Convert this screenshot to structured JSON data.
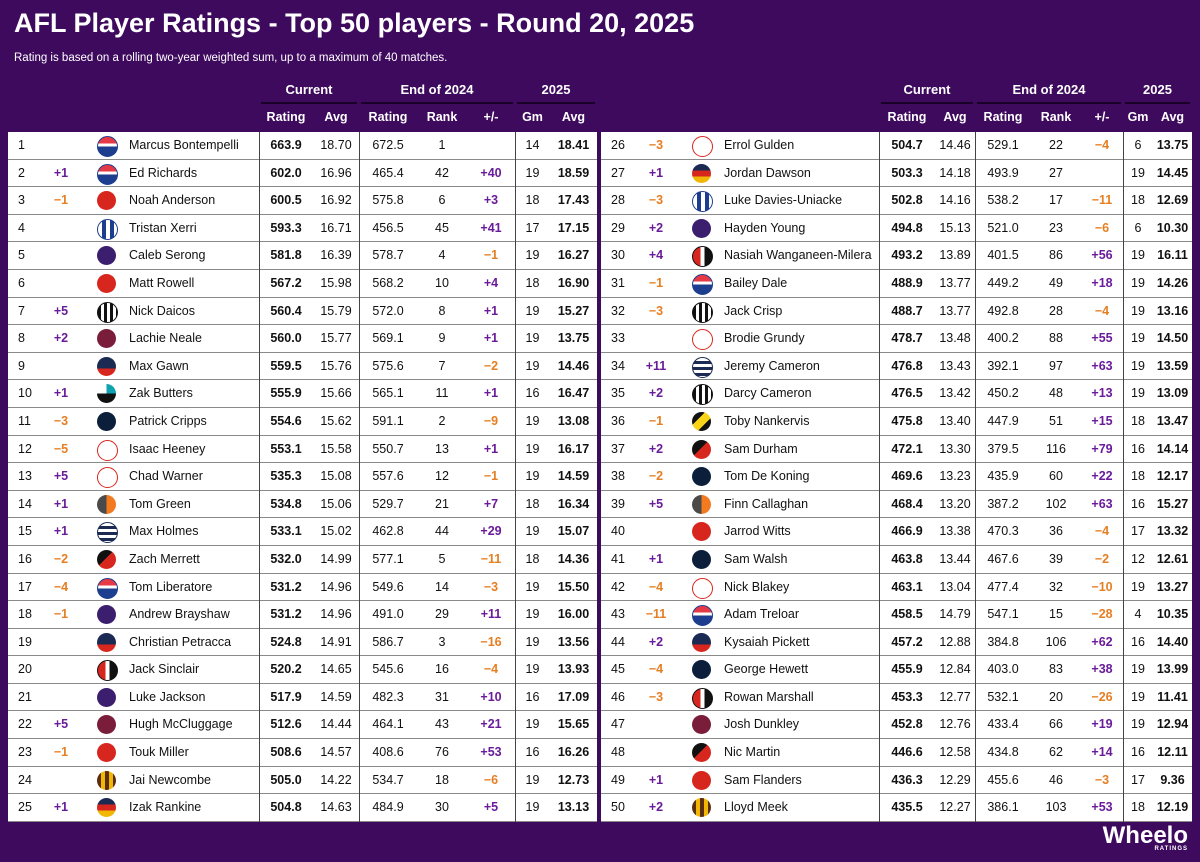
{
  "title": "AFL Player Ratings - Top 50 players - Round 20, 2025",
  "subtitle": "Rating is based on a rolling two-year weighted sum, up to a maximum of 40 matches.",
  "group_headers": {
    "current": "Current",
    "end2024": "End of 2024",
    "y2025": "2025"
  },
  "column_headers": {
    "rating": "Rating",
    "avg": "Avg",
    "rank": "Rank",
    "diff": "+/-",
    "gm": "Gm"
  },
  "brand": {
    "name": "Wheelo",
    "tag": "RATINGS"
  },
  "colors": {
    "background": "#3e0a5e",
    "positive": "#6a1b9a",
    "negative": "#e67e22"
  },
  "players": [
    {
      "rank": "1",
      "chg": "",
      "name": "Marcus Bontempelli",
      "team": "WB",
      "rating": "663.9",
      "avg": "18.70",
      "r24": "672.5",
      "rank24": "1",
      "diff": "",
      "gm": "14",
      "avg25": "18.41"
    },
    {
      "rank": "2",
      "chg": "+1",
      "name": "Ed Richards",
      "team": "WB",
      "rating": "602.0",
      "avg": "16.96",
      "r24": "465.4",
      "rank24": "42",
      "diff": "+40",
      "gm": "19",
      "avg25": "18.59"
    },
    {
      "rank": "3",
      "chg": "−1",
      "name": "Noah Anderson",
      "team": "GC",
      "rating": "600.5",
      "avg": "16.92",
      "r24": "575.8",
      "rank24": "6",
      "diff": "+3",
      "gm": "18",
      "avg25": "17.43"
    },
    {
      "rank": "4",
      "chg": "",
      "name": "Tristan Xerri",
      "team": "NM",
      "rating": "593.3",
      "avg": "16.71",
      "r24": "456.5",
      "rank24": "45",
      "diff": "+41",
      "gm": "17",
      "avg25": "17.15"
    },
    {
      "rank": "5",
      "chg": "",
      "name": "Caleb Serong",
      "team": "FR",
      "rating": "581.8",
      "avg": "16.39",
      "r24": "578.7",
      "rank24": "4",
      "diff": "−1",
      "gm": "19",
      "avg25": "16.27"
    },
    {
      "rank": "6",
      "chg": "",
      "name": "Matt Rowell",
      "team": "GC",
      "rating": "567.2",
      "avg": "15.98",
      "r24": "568.2",
      "rank24": "10",
      "diff": "+4",
      "gm": "18",
      "avg25": "16.90"
    },
    {
      "rank": "7",
      "chg": "+5",
      "name": "Nick Daicos",
      "team": "COL",
      "rating": "560.4",
      "avg": "15.79",
      "r24": "572.0",
      "rank24": "8",
      "diff": "+1",
      "gm": "19",
      "avg25": "15.27"
    },
    {
      "rank": "8",
      "chg": "+2",
      "name": "Lachie Neale",
      "team": "BL",
      "rating": "560.0",
      "avg": "15.77",
      "r24": "569.1",
      "rank24": "9",
      "diff": "+1",
      "gm": "19",
      "avg25": "13.75"
    },
    {
      "rank": "9",
      "chg": "",
      "name": "Max Gawn",
      "team": "MEL",
      "rating": "559.5",
      "avg": "15.76",
      "r24": "575.6",
      "rank24": "7",
      "diff": "−2",
      "gm": "19",
      "avg25": "14.46"
    },
    {
      "rank": "10",
      "chg": "+1",
      "name": "Zak Butters",
      "team": "PA",
      "rating": "555.9",
      "avg": "15.66",
      "r24": "565.1",
      "rank24": "11",
      "diff": "+1",
      "gm": "16",
      "avg25": "16.47"
    },
    {
      "rank": "11",
      "chg": "−3",
      "name": "Patrick Cripps",
      "team": "CAR",
      "rating": "554.6",
      "avg": "15.62",
      "r24": "591.1",
      "rank24": "2",
      "diff": "−9",
      "gm": "19",
      "avg25": "13.08"
    },
    {
      "rank": "12",
      "chg": "−5",
      "name": "Isaac Heeney",
      "team": "SYD",
      "rating": "553.1",
      "avg": "15.58",
      "r24": "550.7",
      "rank24": "13",
      "diff": "+1",
      "gm": "19",
      "avg25": "16.17"
    },
    {
      "rank": "13",
      "chg": "+5",
      "name": "Chad Warner",
      "team": "SYD",
      "rating": "535.3",
      "avg": "15.08",
      "r24": "557.6",
      "rank24": "12",
      "diff": "−1",
      "gm": "19",
      "avg25": "14.59"
    },
    {
      "rank": "14",
      "chg": "+1",
      "name": "Tom Green",
      "team": "GWS",
      "rating": "534.8",
      "avg": "15.06",
      "r24": "529.7",
      "rank24": "21",
      "diff": "+7",
      "gm": "18",
      "avg25": "16.34"
    },
    {
      "rank": "15",
      "chg": "+1",
      "name": "Max Holmes",
      "team": "GEE",
      "rating": "533.1",
      "avg": "15.02",
      "r24": "462.8",
      "rank24": "44",
      "diff": "+29",
      "gm": "19",
      "avg25": "15.07"
    },
    {
      "rank": "16",
      "chg": "−2",
      "name": "Zach Merrett",
      "team": "ESS",
      "rating": "532.0",
      "avg": "14.99",
      "r24": "577.1",
      "rank24": "5",
      "diff": "−11",
      "gm": "18",
      "avg25": "14.36"
    },
    {
      "rank": "17",
      "chg": "−4",
      "name": "Tom Liberatore",
      "team": "WB",
      "rating": "531.2",
      "avg": "14.96",
      "r24": "549.6",
      "rank24": "14",
      "diff": "−3",
      "gm": "19",
      "avg25": "15.50"
    },
    {
      "rank": "18",
      "chg": "−1",
      "name": "Andrew Brayshaw",
      "team": "FR",
      "rating": "531.2",
      "avg": "14.96",
      "r24": "491.0",
      "rank24": "29",
      "diff": "+11",
      "gm": "19",
      "avg25": "16.00"
    },
    {
      "rank": "19",
      "chg": "",
      "name": "Christian Petracca",
      "team": "MEL",
      "rating": "524.8",
      "avg": "14.91",
      "r24": "586.7",
      "rank24": "3",
      "diff": "−16",
      "gm": "19",
      "avg25": "13.56"
    },
    {
      "rank": "20",
      "chg": "",
      "name": "Jack Sinclair",
      "team": "STK",
      "rating": "520.2",
      "avg": "14.65",
      "r24": "545.6",
      "rank24": "16",
      "diff": "−4",
      "gm": "19",
      "avg25": "13.93"
    },
    {
      "rank": "21",
      "chg": "",
      "name": "Luke Jackson",
      "team": "FR",
      "rating": "517.9",
      "avg": "14.59",
      "r24": "482.3",
      "rank24": "31",
      "diff": "+10",
      "gm": "16",
      "avg25": "17.09"
    },
    {
      "rank": "22",
      "chg": "+5",
      "name": "Hugh McCluggage",
      "team": "BL",
      "rating": "512.6",
      "avg": "14.44",
      "r24": "464.1",
      "rank24": "43",
      "diff": "+21",
      "gm": "19",
      "avg25": "15.65"
    },
    {
      "rank": "23",
      "chg": "−1",
      "name": "Touk Miller",
      "team": "GC",
      "rating": "508.6",
      "avg": "14.57",
      "r24": "408.6",
      "rank24": "76",
      "diff": "+53",
      "gm": "16",
      "avg25": "16.26"
    },
    {
      "rank": "24",
      "chg": "",
      "name": "Jai Newcombe",
      "team": "HAW",
      "rating": "505.0",
      "avg": "14.22",
      "r24": "534.7",
      "rank24": "18",
      "diff": "−6",
      "gm": "19",
      "avg25": "12.73"
    },
    {
      "rank": "25",
      "chg": "+1",
      "name": "Izak Rankine",
      "team": "ADE",
      "rating": "504.8",
      "avg": "14.63",
      "r24": "484.9",
      "rank24": "30",
      "diff": "+5",
      "gm": "19",
      "avg25": "13.13"
    },
    {
      "rank": "26",
      "chg": "−3",
      "name": "Errol Gulden",
      "team": "SYD",
      "rating": "504.7",
      "avg": "14.46",
      "r24": "529.1",
      "rank24": "22",
      "diff": "−4",
      "gm": "6",
      "avg25": "13.75"
    },
    {
      "rank": "27",
      "chg": "+1",
      "name": "Jordan Dawson",
      "team": "ADE",
      "rating": "503.3",
      "avg": "14.18",
      "r24": "493.9",
      "rank24": "27",
      "diff": "",
      "gm": "19",
      "avg25": "14.45"
    },
    {
      "rank": "28",
      "chg": "−3",
      "name": "Luke Davies-Uniacke",
      "team": "NM",
      "rating": "502.8",
      "avg": "14.16",
      "r24": "538.2",
      "rank24": "17",
      "diff": "−11",
      "gm": "18",
      "avg25": "12.69"
    },
    {
      "rank": "29",
      "chg": "+2",
      "name": "Hayden Young",
      "team": "FR",
      "rating": "494.8",
      "avg": "15.13",
      "r24": "521.0",
      "rank24": "23",
      "diff": "−6",
      "gm": "6",
      "avg25": "10.30"
    },
    {
      "rank": "30",
      "chg": "+4",
      "name": "Nasiah Wanganeen-Milera",
      "team": "STK",
      "rating": "493.2",
      "avg": "13.89",
      "r24": "401.5",
      "rank24": "86",
      "diff": "+56",
      "gm": "19",
      "avg25": "16.11"
    },
    {
      "rank": "31",
      "chg": "−1",
      "name": "Bailey Dale",
      "team": "WB",
      "rating": "488.9",
      "avg": "13.77",
      "r24": "449.2",
      "rank24": "49",
      "diff": "+18",
      "gm": "19",
      "avg25": "14.26"
    },
    {
      "rank": "32",
      "chg": "−3",
      "name": "Jack Crisp",
      "team": "COL",
      "rating": "488.7",
      "avg": "13.77",
      "r24": "492.8",
      "rank24": "28",
      "diff": "−4",
      "gm": "19",
      "avg25": "13.16"
    },
    {
      "rank": "33",
      "chg": "",
      "name": "Brodie Grundy",
      "team": "SYD",
      "rating": "478.7",
      "avg": "13.48",
      "r24": "400.2",
      "rank24": "88",
      "diff": "+55",
      "gm": "19",
      "avg25": "14.50"
    },
    {
      "rank": "34",
      "chg": "+11",
      "name": "Jeremy Cameron",
      "team": "GEE",
      "rating": "476.8",
      "avg": "13.43",
      "r24": "392.1",
      "rank24": "97",
      "diff": "+63",
      "gm": "19",
      "avg25": "13.59"
    },
    {
      "rank": "35",
      "chg": "+2",
      "name": "Darcy Cameron",
      "team": "COL",
      "rating": "476.5",
      "avg": "13.42",
      "r24": "450.2",
      "rank24": "48",
      "diff": "+13",
      "gm": "19",
      "avg25": "13.09"
    },
    {
      "rank": "36",
      "chg": "−1",
      "name": "Toby Nankervis",
      "team": "RIC",
      "rating": "475.8",
      "avg": "13.40",
      "r24": "447.9",
      "rank24": "51",
      "diff": "+15",
      "gm": "18",
      "avg25": "13.47"
    },
    {
      "rank": "37",
      "chg": "+2",
      "name": "Sam Durham",
      "team": "ESS",
      "rating": "472.1",
      "avg": "13.30",
      "r24": "379.5",
      "rank24": "116",
      "diff": "+79",
      "gm": "16",
      "avg25": "14.14"
    },
    {
      "rank": "38",
      "chg": "−2",
      "name": "Tom De Koning",
      "team": "CAR",
      "rating": "469.6",
      "avg": "13.23",
      "r24": "435.9",
      "rank24": "60",
      "diff": "+22",
      "gm": "18",
      "avg25": "12.17"
    },
    {
      "rank": "39",
      "chg": "+5",
      "name": "Finn Callaghan",
      "team": "GWS",
      "rating": "468.4",
      "avg": "13.20",
      "r24": "387.2",
      "rank24": "102",
      "diff": "+63",
      "gm": "16",
      "avg25": "15.27"
    },
    {
      "rank": "40",
      "chg": "",
      "name": "Jarrod Witts",
      "team": "GC",
      "rating": "466.9",
      "avg": "13.38",
      "r24": "470.3",
      "rank24": "36",
      "diff": "−4",
      "gm": "17",
      "avg25": "13.32"
    },
    {
      "rank": "41",
      "chg": "+1",
      "name": "Sam Walsh",
      "team": "CAR",
      "rating": "463.8",
      "avg": "13.44",
      "r24": "467.6",
      "rank24": "39",
      "diff": "−2",
      "gm": "12",
      "avg25": "12.61"
    },
    {
      "rank": "42",
      "chg": "−4",
      "name": "Nick Blakey",
      "team": "SYD",
      "rating": "463.1",
      "avg": "13.04",
      "r24": "477.4",
      "rank24": "32",
      "diff": "−10",
      "gm": "19",
      "avg25": "13.27"
    },
    {
      "rank": "43",
      "chg": "−11",
      "name": "Adam Treloar",
      "team": "WB",
      "rating": "458.5",
      "avg": "14.79",
      "r24": "547.1",
      "rank24": "15",
      "diff": "−28",
      "gm": "4",
      "avg25": "10.35"
    },
    {
      "rank": "44",
      "chg": "+2",
      "name": "Kysaiah Pickett",
      "team": "MEL",
      "rating": "457.2",
      "avg": "12.88",
      "r24": "384.8",
      "rank24": "106",
      "diff": "+62",
      "gm": "16",
      "avg25": "14.40"
    },
    {
      "rank": "45",
      "chg": "−4",
      "name": "George Hewett",
      "team": "CAR",
      "rating": "455.9",
      "avg": "12.84",
      "r24": "403.0",
      "rank24": "83",
      "diff": "+38",
      "gm": "19",
      "avg25": "13.99"
    },
    {
      "rank": "46",
      "chg": "−3",
      "name": "Rowan Marshall",
      "team": "STK",
      "rating": "453.3",
      "avg": "12.77",
      "r24": "532.1",
      "rank24": "20",
      "diff": "−26",
      "gm": "19",
      "avg25": "11.41"
    },
    {
      "rank": "47",
      "chg": "",
      "name": "Josh Dunkley",
      "team": "BL",
      "rating": "452.8",
      "avg": "12.76",
      "r24": "433.4",
      "rank24": "66",
      "diff": "+19",
      "gm": "19",
      "avg25": "12.94"
    },
    {
      "rank": "48",
      "chg": "",
      "name": "Nic Martin",
      "team": "ESS",
      "rating": "446.6",
      "avg": "12.58",
      "r24": "434.8",
      "rank24": "62",
      "diff": "+14",
      "gm": "16",
      "avg25": "12.11"
    },
    {
      "rank": "49",
      "chg": "+1",
      "name": "Sam Flanders",
      "team": "GC",
      "rating": "436.3",
      "avg": "12.29",
      "r24": "455.6",
      "rank24": "46",
      "diff": "−3",
      "gm": "17",
      "avg25": "9.36"
    },
    {
      "rank": "50",
      "chg": "+2",
      "name": "Lloyd Meek",
      "team": "HAW",
      "rating": "435.5",
      "avg": "12.27",
      "r24": "386.1",
      "rank24": "103",
      "diff": "+53",
      "gm": "18",
      "avg25": "12.19"
    }
  ]
}
